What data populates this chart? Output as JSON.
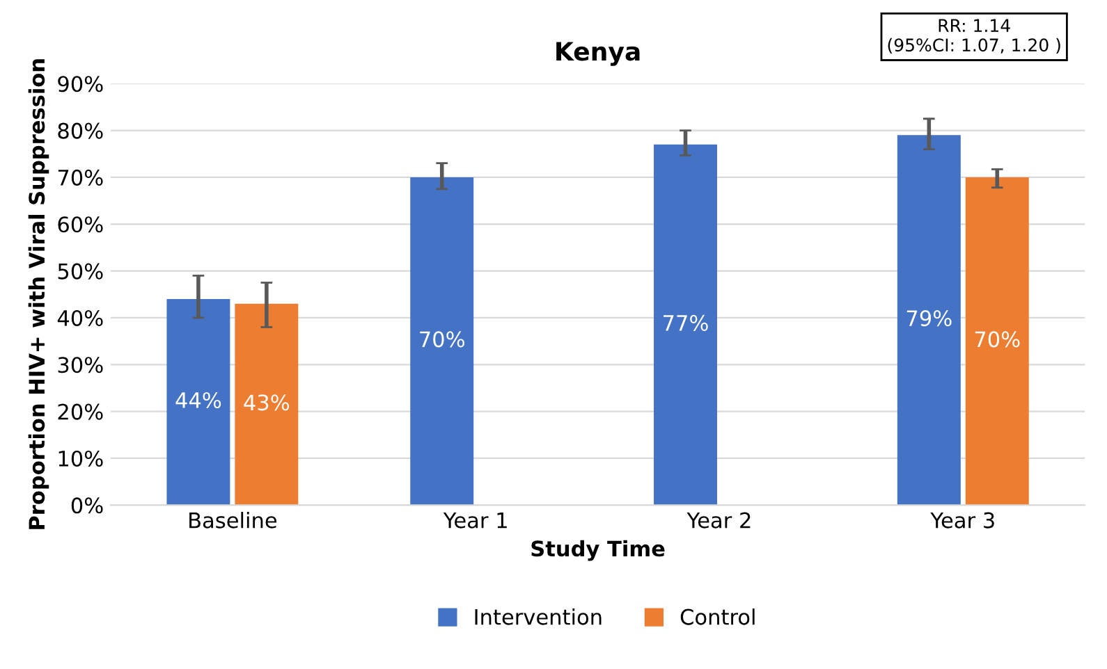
{
  "chart_data": {
    "type": "bar",
    "title": "Kenya",
    "xlabel": "Study Time",
    "ylabel": "Proportion HIV+ with Viral Suppression",
    "categories": [
      "Baseline",
      "Year 1",
      "Year 2",
      "Year 3"
    ],
    "series": [
      {
        "name": "Intervention",
        "color": "#4472c4",
        "values": [
          44,
          70,
          77,
          79
        ],
        "value_labels": [
          "44%",
          "70%",
          "77%",
          "79%"
        ],
        "errors": [
          [
            40,
            49
          ],
          [
            67.5,
            73
          ],
          [
            74.7,
            80
          ],
          [
            76,
            82.5
          ]
        ]
      },
      {
        "name": "Control",
        "color": "#ed7d31",
        "values": [
          43,
          null,
          null,
          70
        ],
        "value_labels": [
          "43%",
          null,
          null,
          "70%"
        ],
        "errors": [
          [
            38,
            47.5
          ],
          null,
          null,
          [
            67.8,
            71.7
          ]
        ]
      }
    ],
    "ylim": [
      0,
      90
    ],
    "yticks": [
      {
        "value": 0,
        "label": "0%"
      },
      {
        "value": 10,
        "label": "10%"
      },
      {
        "value": 20,
        "label": "20%"
      },
      {
        "value": 30,
        "label": "30%"
      },
      {
        "value": 40,
        "label": "40%"
      },
      {
        "value": 50,
        "label": "50%"
      },
      {
        "value": 60,
        "label": "60%"
      },
      {
        "value": 70,
        "label": "70%"
      },
      {
        "value": 80,
        "label": "80%"
      },
      {
        "value": 90,
        "label": "90%"
      }
    ],
    "grid": "y",
    "legend": "bottom",
    "annotations": [
      "RR: 1.14\n(95%CI: 1.07, 1.20 )"
    ]
  }
}
